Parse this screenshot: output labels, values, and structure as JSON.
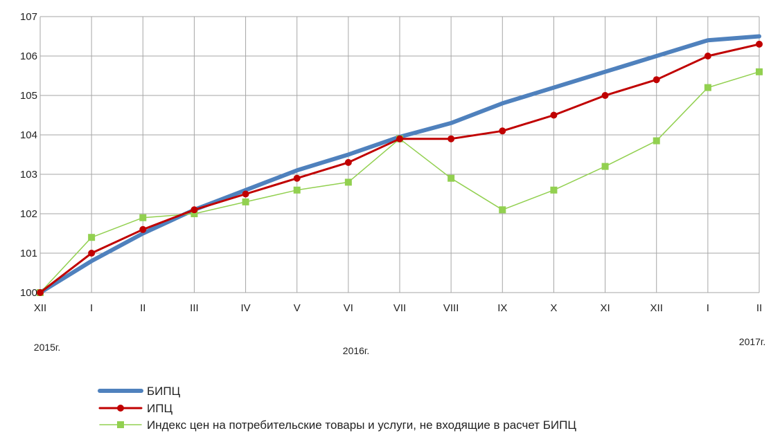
{
  "chart_data": {
    "type": "line",
    "title": "",
    "xlabel": "",
    "ylabel": "",
    "categories": [
      "XII",
      "I",
      "II",
      "III",
      "IV",
      "V",
      "VI",
      "VII",
      "VIII",
      "IX",
      "X",
      "XI",
      "XII",
      "I",
      "II"
    ],
    "year_labels": [
      "2015г.",
      "2016г.",
      "2017г."
    ],
    "ylim": [
      100,
      107
    ],
    "yticks": [
      100,
      101,
      102,
      103,
      104,
      105,
      106,
      107
    ],
    "grid": true,
    "legend_position": "bottom",
    "series": [
      {
        "name": "БИПЦ",
        "color": "#4f81bd",
        "marker": "none",
        "values": [
          100.0,
          100.8,
          101.5,
          102.1,
          102.6,
          103.1,
          103.5,
          103.95,
          104.3,
          104.8,
          105.2,
          105.6,
          106.0,
          106.4,
          106.5
        ]
      },
      {
        "name": "ИПЦ",
        "color": "#c00000",
        "marker": "circle",
        "values": [
          100.0,
          101.0,
          101.6,
          102.1,
          102.5,
          102.9,
          103.3,
          103.9,
          103.9,
          104.1,
          104.5,
          105.0,
          105.4,
          106.0,
          106.3
        ]
      },
      {
        "name": "Индекс цен на потребительские товары и услуги, не входящие в расчет БИПЦ",
        "color": "#92d050",
        "marker": "square",
        "values": [
          100.0,
          101.4,
          101.9,
          102.0,
          102.3,
          102.6,
          102.8,
          103.9,
          102.9,
          102.1,
          102.6,
          103.2,
          103.85,
          105.2,
          105.6
        ]
      }
    ]
  }
}
